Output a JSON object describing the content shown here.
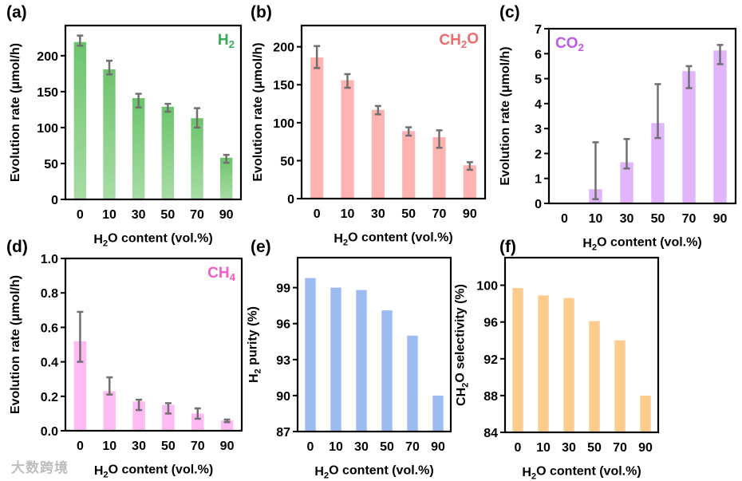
{
  "watermark": "大数跨境",
  "chart_data": [
    {
      "type": "bar",
      "panel": "(a)",
      "categories": [
        "0",
        "10",
        "30",
        "50",
        "70",
        "90"
      ],
      "values": [
        219,
        181,
        141,
        129,
        113,
        58
      ],
      "err_low": [
        214,
        174,
        128,
        122,
        100,
        51
      ],
      "err_high": [
        228,
        193,
        147,
        133,
        127,
        62
      ],
      "ylim": [
        0,
        242
      ],
      "yticks": [
        0,
        50,
        100,
        150,
        200
      ],
      "ylabel": [
        {
          "t": "Evolution rate (μmol/h)"
        }
      ],
      "xlabel": [
        {
          "t": "H"
        },
        {
          "t": "2",
          "sub": true
        },
        {
          "t": "O content (vol.%)"
        }
      ],
      "species": [
        {
          "t": "H"
        },
        {
          "t": "2",
          "sub": true
        }
      ],
      "species_pos": "top-right",
      "color": "#6cc46c",
      "color2": "#a8dca5",
      "species_color": "#3aaa5c"
    },
    {
      "type": "bar",
      "panel": "(b)",
      "categories": [
        "0",
        "10",
        "30",
        "50",
        "70",
        "90"
      ],
      "values": [
        186,
        156,
        117,
        89,
        81,
        44
      ],
      "err_low": [
        172,
        146,
        111,
        83,
        67,
        38
      ],
      "err_high": [
        201,
        164,
        122,
        94,
        90,
        48
      ],
      "ylim": [
        0,
        228
      ],
      "yticks": [
        0,
        50,
        100,
        150,
        200
      ],
      "ylabel": [
        {
          "t": "Evolution rate (μmol/h)"
        }
      ],
      "xlabel": [
        {
          "t": "H"
        },
        {
          "t": "2",
          "sub": true
        },
        {
          "t": "O content (vol.%)"
        }
      ],
      "species": [
        {
          "t": "CH"
        },
        {
          "t": "2",
          "sub": true
        },
        {
          "t": "O"
        }
      ],
      "species_pos": "top-right",
      "color": "#ffb3b0",
      "color2": "#ffb3b0",
      "species_color": "#f06a6a"
    },
    {
      "type": "bar",
      "panel": "(c)",
      "categories": [
        "0",
        "10",
        "30",
        "50",
        "70",
        "90"
      ],
      "values": [
        0,
        0.57,
        1.65,
        3.22,
        5.3,
        6.13
      ],
      "err_low": [
        null,
        0.17,
        1.4,
        2.62,
        4.62,
        5.58
      ],
      "err_high": [
        null,
        2.45,
        2.58,
        4.78,
        5.5,
        6.35
      ],
      "ylim": [
        0,
        7
      ],
      "yticks": [
        0,
        1,
        2,
        3,
        4,
        5,
        6,
        7
      ],
      "ylabel": [
        {
          "t": "Evolution rate (μmol/h)"
        }
      ],
      "xlabel": [
        {
          "t": "H"
        },
        {
          "t": "2",
          "sub": true
        },
        {
          "t": "O content (vol.%)"
        }
      ],
      "species": [
        {
          "t": "CO"
        },
        {
          "t": "2",
          "sub": true
        }
      ],
      "species_pos": "top-left",
      "color": "#e2b4fb",
      "color2": "#e2b4fb",
      "species_color": "#c05ae6"
    },
    {
      "type": "bar",
      "panel": "(d)",
      "categories": [
        "0",
        "10",
        "30",
        "50",
        "70",
        "90"
      ],
      "values": [
        0.52,
        0.23,
        0.17,
        0.15,
        0.1,
        0.06
      ],
      "err_low": [
        0.4,
        0.21,
        0.12,
        0.1,
        0.07,
        0.05
      ],
      "err_high": [
        0.69,
        0.31,
        0.18,
        0.16,
        0.13,
        0.065
      ],
      "ylim": [
        0,
        1.0
      ],
      "yticks": [
        "0.0",
        "0.2",
        "0.4",
        "0.6",
        "0.8",
        "1.0"
      ],
      "ylabel": [
        {
          "t": "Evolution rate (μmol/h)"
        }
      ],
      "xlabel": [
        {
          "t": "H"
        },
        {
          "t": "2",
          "sub": true
        },
        {
          "t": "O content (vol.%)"
        }
      ],
      "species": [
        {
          "t": "CH"
        },
        {
          "t": "4",
          "sub": true
        }
      ],
      "species_pos": "top-right",
      "color": "#ffbaf3",
      "color2": "#ffbaf3",
      "species_color": "#f05cc8"
    },
    {
      "type": "bar",
      "panel": "(e)",
      "categories": [
        "0",
        "10",
        "30",
        "50",
        "70",
        "90"
      ],
      "values": [
        99.8,
        99.0,
        98.8,
        97.1,
        95.0,
        90.0
      ],
      "ylim": [
        87,
        101.5
      ],
      "yticks": [
        87,
        90,
        93,
        96,
        99
      ],
      "ylabel": [
        {
          "t": "H"
        },
        {
          "t": "2",
          "sub": true
        },
        {
          "t": " purity (%)"
        }
      ],
      "xlabel": [
        {
          "t": "H"
        },
        {
          "t": "2",
          "sub": true
        },
        {
          "t": "O content (vol.%)"
        }
      ],
      "color": "#9dbbf3",
      "color2": "#9dbbf3"
    },
    {
      "type": "bar",
      "panel": "(f)",
      "categories": [
        "0",
        "10",
        "30",
        "50",
        "70",
        "90"
      ],
      "values": [
        99.7,
        98.9,
        98.6,
        96.1,
        94.0,
        88.0
      ],
      "ylim": [
        84,
        103
      ],
      "yticks": [
        84,
        88,
        92,
        96,
        100
      ],
      "ylabel": [
        {
          "t": "CH"
        },
        {
          "t": "2",
          "sub": true
        },
        {
          "t": "O selectivity (%)"
        }
      ],
      "xlabel": [
        {
          "t": "H"
        },
        {
          "t": "2",
          "sub": true
        },
        {
          "t": "O content (vol.%)"
        }
      ],
      "color": "#fdcb8d",
      "color2": "#fdcb8d"
    }
  ]
}
